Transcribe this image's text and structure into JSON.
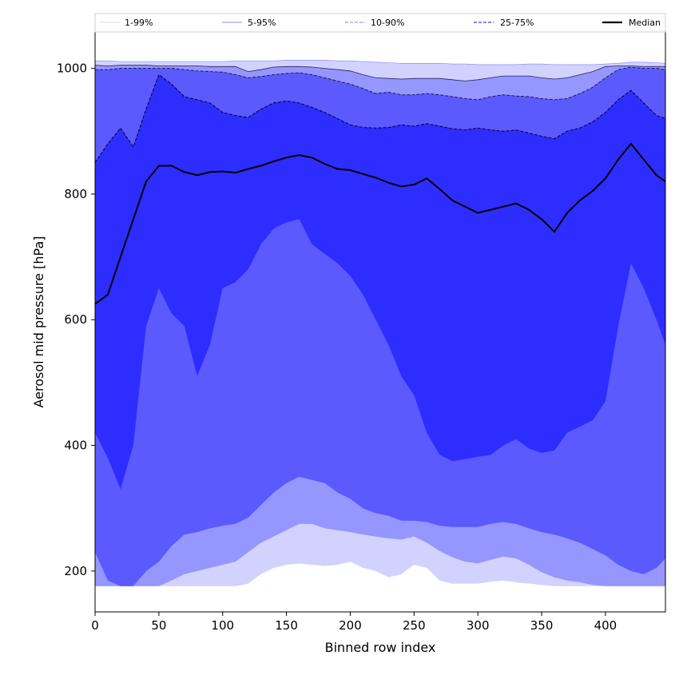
{
  "chart_data": {
    "type": "area",
    "title": "",
    "xlabel": "Binned row index",
    "ylabel": "Aerosol mid pressure [hPa]",
    "xlim": [
      0,
      447
    ],
    "ylim": [
      135,
      1058
    ],
    "xticks": [
      0,
      50,
      100,
      150,
      200,
      250,
      300,
      350,
      400
    ],
    "yticks": [
      200,
      400,
      600,
      800,
      1000
    ],
    "grid": false,
    "legend_position": "top (above plot)",
    "colors": {
      "band_1_99": "#d2d2ff",
      "band_5_95": "#9696ff",
      "band_10_90": "#5a5aff",
      "band_25_75": "#2d2dff",
      "median": "#000000"
    },
    "legend": [
      {
        "label": "1-99%",
        "style": "solid-thin"
      },
      {
        "label": "5-95%",
        "style": "solid-thin"
      },
      {
        "label": "10-90%",
        "style": "dashed"
      },
      {
        "label": "25-75%",
        "style": "dashed"
      },
      {
        "label": "Median",
        "style": "solid-thick"
      }
    ],
    "x": [
      0,
      10,
      20,
      30,
      40,
      50,
      60,
      70,
      80,
      90,
      100,
      110,
      120,
      130,
      140,
      150,
      160,
      170,
      180,
      190,
      200,
      210,
      220,
      230,
      240,
      250,
      260,
      270,
      280,
      290,
      300,
      310,
      320,
      330,
      340,
      350,
      360,
      370,
      380,
      390,
      400,
      410,
      420,
      430,
      440,
      447
    ],
    "series": [
      {
        "name": "1-99% lower",
        "values": [
          176,
          176,
          176,
          176,
          176,
          176,
          176,
          176,
          176,
          176,
          176,
          176,
          180,
          195,
          205,
          210,
          212,
          210,
          208,
          210,
          215,
          205,
          200,
          190,
          195,
          210,
          205,
          185,
          180,
          180,
          180,
          183,
          185,
          182,
          180,
          178,
          176,
          176,
          176,
          176,
          176,
          176,
          176,
          176,
          176,
          176
        ]
      },
      {
        "name": "5-95% lower",
        "values": [
          176,
          176,
          176,
          176,
          176,
          176,
          185,
          195,
          200,
          205,
          210,
          215,
          230,
          245,
          255,
          265,
          275,
          275,
          268,
          265,
          262,
          258,
          255,
          252,
          250,
          255,
          245,
          232,
          222,
          215,
          212,
          218,
          223,
          220,
          210,
          198,
          190,
          185,
          182,
          178,
          176,
          176,
          176,
          176,
          176,
          176
        ]
      },
      {
        "name": "10-90% lower",
        "values": [
          230,
          185,
          176,
          176,
          200,
          215,
          240,
          258,
          262,
          268,
          272,
          275,
          285,
          305,
          325,
          340,
          350,
          345,
          340,
          325,
          315,
          300,
          292,
          288,
          280,
          280,
          278,
          272,
          270,
          270,
          270,
          275,
          278,
          275,
          268,
          262,
          258,
          252,
          245,
          235,
          225,
          210,
          200,
          195,
          205,
          220
        ]
      },
      {
        "name": "25-75% lower",
        "values": [
          420,
          380,
          330,
          400,
          590,
          650,
          610,
          590,
          510,
          560,
          650,
          660,
          680,
          720,
          745,
          755,
          760,
          720,
          705,
          690,
          670,
          640,
          600,
          560,
          510,
          480,
          420,
          385,
          375,
          378,
          382,
          385,
          400,
          410,
          395,
          388,
          392,
          420,
          430,
          440,
          470,
          590,
          690,
          650,
          600,
          560
        ]
      },
      {
        "name": "Median",
        "values": [
          625,
          640,
          700,
          760,
          820,
          845,
          845,
          835,
          830,
          835,
          836,
          834,
          840,
          845,
          852,
          858,
          862,
          858,
          848,
          840,
          838,
          832,
          826,
          818,
          812,
          815,
          825,
          808,
          790,
          780,
          770,
          775,
          780,
          785,
          775,
          760,
          740,
          770,
          790,
          805,
          825,
          855,
          880,
          855,
          830,
          820
        ]
      },
      {
        "name": "25-75% upper",
        "values": [
          850,
          880,
          905,
          875,
          935,
          990,
          975,
          955,
          950,
          945,
          930,
          925,
          922,
          935,
          945,
          948,
          945,
          938,
          930,
          920,
          910,
          906,
          905,
          906,
          910,
          908,
          912,
          908,
          904,
          902,
          905,
          902,
          900,
          902,
          897,
          892,
          888,
          900,
          905,
          915,
          930,
          950,
          965,
          945,
          925,
          920
        ]
      },
      {
        "name": "10-90% upper",
        "values": [
          998,
          998,
          1000,
          1000,
          1000,
          1000,
          1000,
          998,
          996,
          995,
          994,
          990,
          985,
          987,
          990,
          992,
          993,
          990,
          985,
          980,
          975,
          968,
          960,
          962,
          958,
          958,
          960,
          958,
          955,
          952,
          950,
          955,
          958,
          956,
          955,
          952,
          950,
          952,
          960,
          970,
          985,
          998,
          1002,
          1000,
          1000,
          998
        ]
      },
      {
        "name": "5-95% upper",
        "values": [
          1005,
          1004,
          1005,
          1005,
          1005,
          1004,
          1004,
          1004,
          1004,
          1003,
          1003,
          1003,
          995,
          998,
          1002,
          1003,
          1003,
          1002,
          1000,
          998,
          996,
          990,
          985,
          984,
          983,
          984,
          984,
          984,
          982,
          980,
          982,
          985,
          988,
          988,
          988,
          985,
          983,
          985,
          990,
          995,
          1003,
          1004,
          1004,
          1003,
          1003,
          1003
        ]
      },
      {
        "name": "1-99% upper",
        "values": [
          1012,
          1012,
          1011,
          1011,
          1011,
          1011,
          1011,
          1011,
          1011,
          1011,
          1011,
          1012,
          1012,
          1012,
          1012,
          1013,
          1013,
          1013,
          1013,
          1012,
          1012,
          1011,
          1010,
          1009,
          1008,
          1008,
          1008,
          1008,
          1007,
          1007,
          1006,
          1006,
          1006,
          1006,
          1007,
          1007,
          1006,
          1006,
          1006,
          1006,
          1007,
          1008,
          1010,
          1010,
          1009,
          1008
        ]
      }
    ]
  }
}
